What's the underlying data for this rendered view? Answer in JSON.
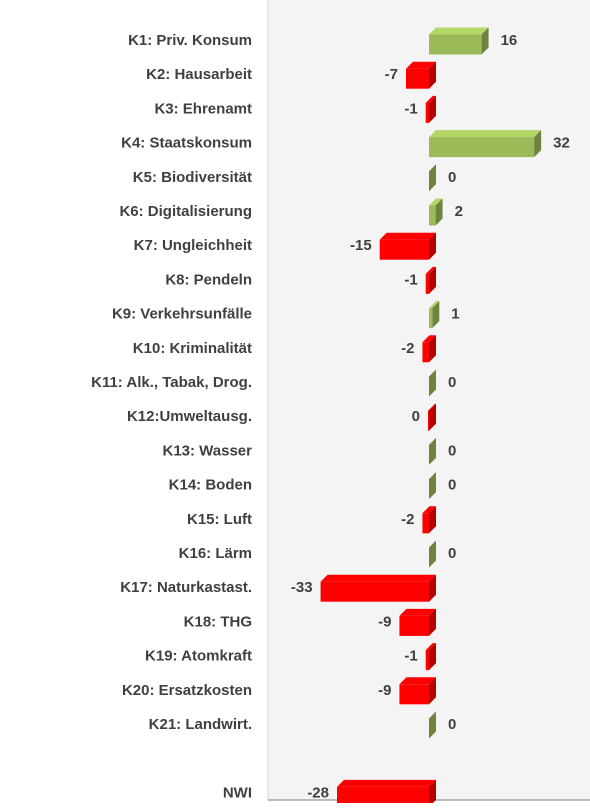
{
  "chart_data": {
    "type": "bar3d_horizontal",
    "categories": [
      "K1: Priv. Konsum",
      "K2: Hausarbeit",
      "K3: Ehrenamt",
      "K4: Staatskonsum",
      "K5: Biodiversität",
      "K6: Digitalisierung",
      "K7: Ungleichheit",
      "K8: Pendeln",
      "K9: Verkehrsunfälle",
      "K10: Kriminalität",
      "K11: Alk., Tabak, Drog.",
      "K12:Umweltausg.",
      "K13: Wasser",
      "K14: Boden",
      "K15: Luft",
      "K16: Lärm",
      "K17: Naturkastast.",
      "K18: THG",
      "K19: Atomkraft",
      "K20: Ersatzkosten",
      "K21: Landwirt.",
      null,
      "NWI"
    ],
    "values": [
      16,
      -7,
      -1,
      32,
      0,
      2,
      -15,
      -1,
      1,
      -2,
      0,
      -0.3,
      0,
      0,
      -2,
      0,
      -33,
      -9,
      -1,
      -9,
      0,
      null,
      -28
    ],
    "value_labels": [
      "16",
      "-7",
      "-1",
      "32",
      "0",
      "2",
      "-15",
      "-1",
      "1",
      "-2",
      "0",
      "0",
      "0",
      "0",
      "-2",
      "0",
      "-33",
      "-9",
      "-1",
      "-9",
      "0",
      null,
      "-28"
    ],
    "positive_color": "#9bbb59",
    "negative_color": "#ff0000",
    "xlim": [
      -49,
      49
    ]
  }
}
